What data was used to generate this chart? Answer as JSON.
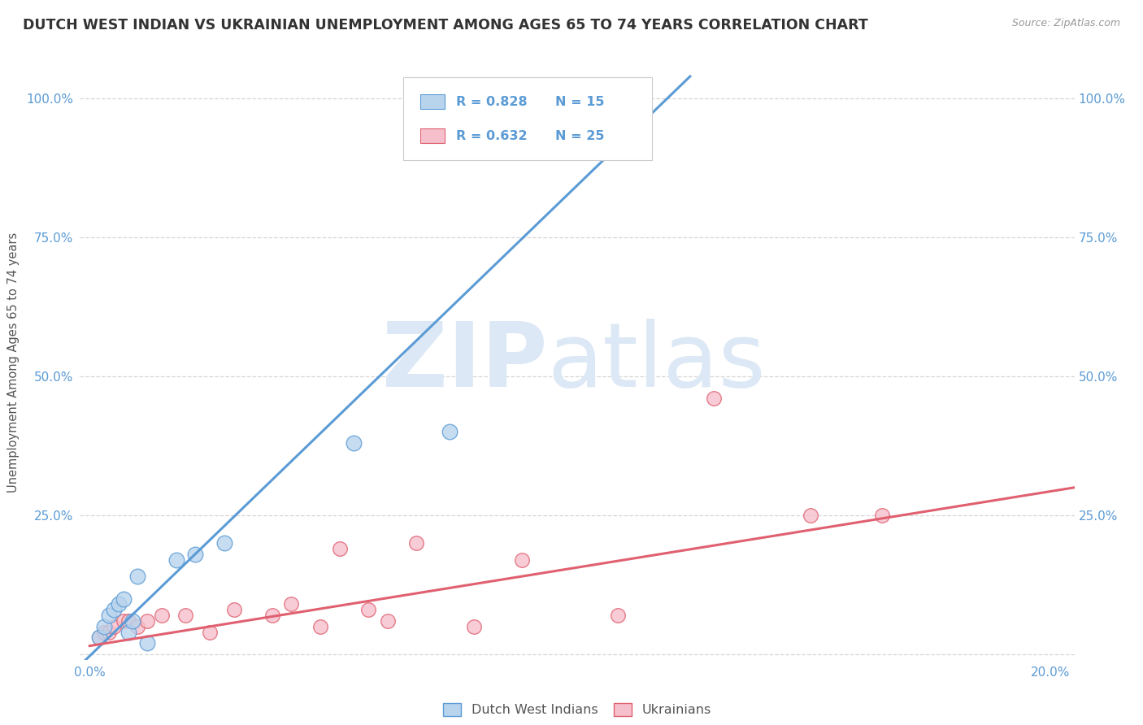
{
  "title": "DUTCH WEST INDIAN VS UKRAINIAN UNEMPLOYMENT AMONG AGES 65 TO 74 YEARS CORRELATION CHART",
  "source": "Source: ZipAtlas.com",
  "ylabel": "Unemployment Among Ages 65 to 74 years",
  "background_color": "#ffffff",
  "plot_bg_color": "#ffffff",
  "grid_color": "#cccccc",
  "title_color": "#333333",
  "title_fontsize": 12.5,
  "watermark_color": "#dce8f5",
  "blue_color": "#b8d4ed",
  "blue_line_color": "#5b9bd5",
  "pink_color": "#f5c0cc",
  "pink_line_color": "#e06070",
  "legend_label_blue": "Dutch West Indians",
  "legend_label_pink": "Ukrainians",
  "x_ticks": [
    0.0,
    0.05,
    0.1,
    0.15,
    0.2
  ],
  "y_ticks": [
    0.0,
    0.25,
    0.5,
    0.75,
    1.0
  ],
  "xlim": [
    -0.002,
    0.205
  ],
  "ylim": [
    -0.01,
    1.06
  ],
  "dutch_x": [
    0.002,
    0.003,
    0.004,
    0.005,
    0.006,
    0.007,
    0.008,
    0.009,
    0.01,
    0.012,
    0.018,
    0.022,
    0.028,
    0.055,
    0.075
  ],
  "dutch_y": [
    0.03,
    0.05,
    0.07,
    0.08,
    0.09,
    0.1,
    0.04,
    0.06,
    0.14,
    0.02,
    0.17,
    0.18,
    0.2,
    0.38,
    0.4
  ],
  "ukr_x": [
    0.002,
    0.003,
    0.004,
    0.005,
    0.007,
    0.008,
    0.01,
    0.012,
    0.015,
    0.02,
    0.025,
    0.03,
    0.038,
    0.042,
    0.048,
    0.052,
    0.058,
    0.062,
    0.068,
    0.08,
    0.09,
    0.11,
    0.13,
    0.15,
    0.165
  ],
  "ukr_y": [
    0.03,
    0.04,
    0.04,
    0.05,
    0.06,
    0.06,
    0.05,
    0.06,
    0.07,
    0.07,
    0.04,
    0.08,
    0.07,
    0.09,
    0.05,
    0.19,
    0.08,
    0.06,
    0.2,
    0.05,
    0.17,
    0.07,
    0.46,
    0.25,
    0.25
  ],
  "blue_line_x": [
    -0.002,
    0.125
  ],
  "blue_line_y": [
    -0.02,
    1.04
  ],
  "pink_line_x": [
    0.0,
    0.205
  ],
  "pink_line_y": [
    0.015,
    0.3
  ]
}
